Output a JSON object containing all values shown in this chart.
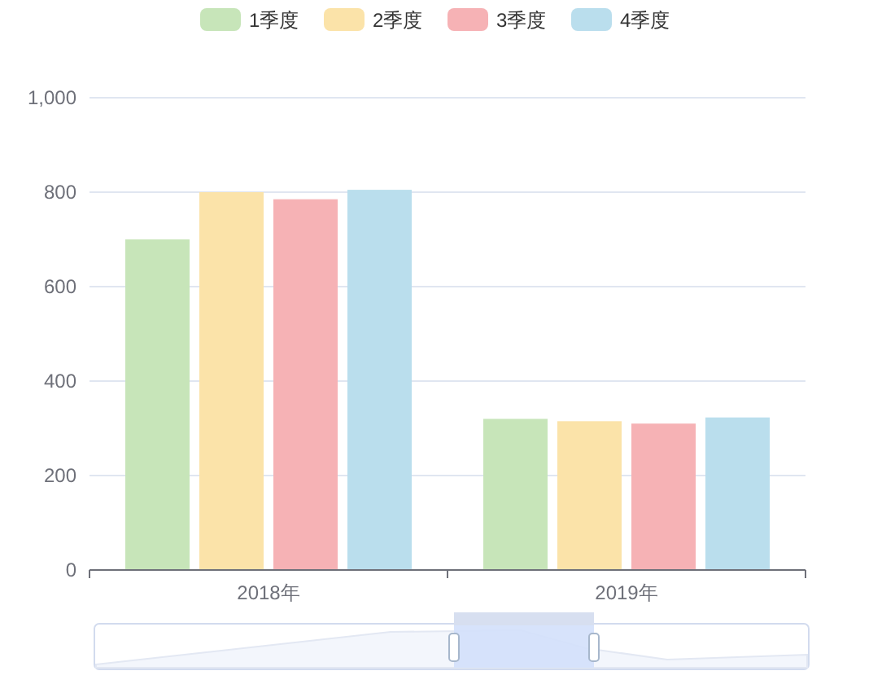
{
  "chart_data": {
    "type": "bar",
    "categories": [
      "2018年",
      "2019年"
    ],
    "series": [
      {
        "name": "1季度",
        "color": "#c7e5b9",
        "values": [
          700,
          320
        ]
      },
      {
        "name": "2季度",
        "color": "#fbe3a9",
        "values": [
          800,
          315
        ]
      },
      {
        "name": "3季度",
        "color": "#f6b2b5",
        "values": [
          785,
          310
        ]
      },
      {
        "name": "4季度",
        "color": "#badeed",
        "values": [
          805,
          323
        ]
      }
    ],
    "ylim": [
      0,
      1000
    ],
    "yticks": [
      0,
      200,
      400,
      600,
      800,
      {
        "value": 1000,
        "label": "1,000"
      }
    ],
    "grid": "y",
    "legend": "top"
  }
}
